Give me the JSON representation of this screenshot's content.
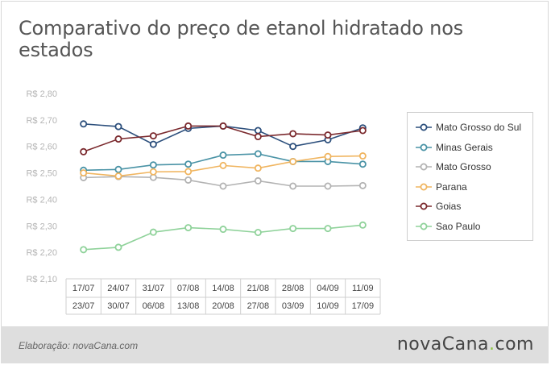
{
  "title": "Comparativo do preço de etanol hidratado nos estados",
  "credit": "Elaboração: novaCana.com",
  "logo": {
    "name": "novaCana",
    "dot": ".",
    "suffix": "com"
  },
  "chart_data": {
    "type": "line",
    "title": "Comparativo do preço de etanol hidratado nos estados",
    "ylim": [
      2.1,
      2.8
    ],
    "yticks": [
      "R$ 2,80",
      "R$ 2,70",
      "R$ 2,60",
      "R$ 2,50",
      "R$ 2,40",
      "R$ 2,30",
      "R$ 2,20",
      "R$ 2,10"
    ],
    "ytick_values": [
      2.8,
      2.7,
      2.6,
      2.5,
      2.4,
      2.3,
      2.2,
      2.1
    ],
    "categories": [
      [
        "17/07",
        "23/07"
      ],
      [
        "24/07",
        "30/07"
      ],
      [
        "31/07",
        "06/08"
      ],
      [
        "07/08",
        "13/08"
      ],
      [
        "14/08",
        "20/08"
      ],
      [
        "21/08",
        "27/08"
      ],
      [
        "28/08",
        "03/09"
      ],
      [
        "04/09",
        "10/09"
      ],
      [
        "11/09",
        "17/09"
      ]
    ],
    "legend_position": "right",
    "grid": false,
    "series": [
      {
        "name": "Mato Grosso do Sul",
        "color": "#2c4f7c",
        "values": [
          2.685,
          2.675,
          2.608,
          2.668,
          2.677,
          2.66,
          2.6,
          2.625,
          2.67
        ]
      },
      {
        "name": "Minas Gerais",
        "color": "#4a93a6",
        "values": [
          2.51,
          2.513,
          2.53,
          2.533,
          2.567,
          2.572,
          2.543,
          2.543,
          2.533
        ]
      },
      {
        "name": "Mato Grosso",
        "color": "#b3b3b3",
        "values": [
          2.482,
          2.486,
          2.483,
          2.473,
          2.45,
          2.47,
          2.45,
          2.45,
          2.452
        ]
      },
      {
        "name": "Parana",
        "color": "#f0b560",
        "values": [
          2.5,
          2.488,
          2.504,
          2.505,
          2.528,
          2.518,
          2.543,
          2.562,
          2.564
        ]
      },
      {
        "name": "Goias",
        "color": "#7b2a2e",
        "values": [
          2.58,
          2.628,
          2.64,
          2.677,
          2.677,
          2.637,
          2.648,
          2.643,
          2.66
        ]
      },
      {
        "name": "Sao Paulo",
        "color": "#8fd29a",
        "values": [
          2.21,
          2.219,
          2.276,
          2.293,
          2.287,
          2.275,
          2.29,
          2.29,
          2.303
        ]
      }
    ]
  }
}
